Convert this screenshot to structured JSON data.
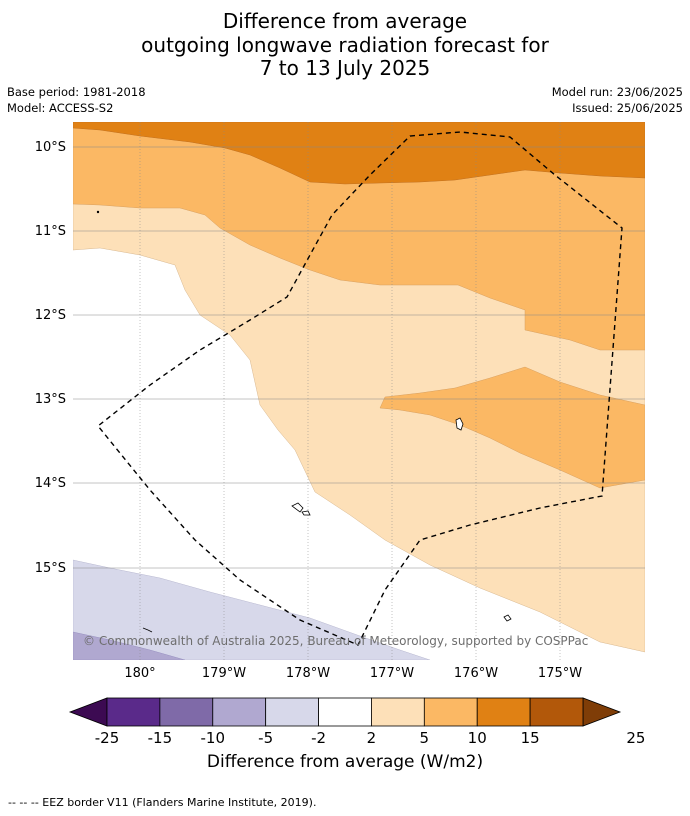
{
  "title": {
    "line1": "Difference from average",
    "line2": "outgoing longwave radiation forecast for",
    "line3": "7 to 13 July 2025"
  },
  "meta": {
    "base_period": "Base period: 1981-2018",
    "model": "Model: ACCESS-S2",
    "model_run": "Model run: 23/06/2025",
    "issued": "Issued: 25/06/2025"
  },
  "map": {
    "lat_labels": [
      "10°S",
      "11°S",
      "12°S",
      "13°S",
      "14°S",
      "15°S"
    ],
    "lon_labels": [
      "180°",
      "179°W",
      "178°W",
      "177°W",
      "176°W",
      "175°W"
    ],
    "copyright": "© Commonwealth of Australia 2025, Bureau of Meteorology, supported by COSPPac",
    "eez_style": "dashed"
  },
  "colorbar": {
    "ticks": [
      "-25",
      "-15",
      "-10",
      "-5",
      "-2",
      "2",
      "5",
      "10",
      "15",
      "25"
    ],
    "colors": [
      "#5a2a8a",
      "#7f6aa8",
      "#b0a8d0",
      "#d7d8ea",
      "#ffffff",
      "#fde0b8",
      "#fbb864",
      "#e08114",
      "#b2580a"
    ],
    "under_color": "#3c0a52",
    "over_color": "#7f3d07",
    "title": "Difference from average (W/m2)"
  },
  "footer": "--  --  -- EEZ border V11 (Flanders Marine Institute, 2019)."
}
